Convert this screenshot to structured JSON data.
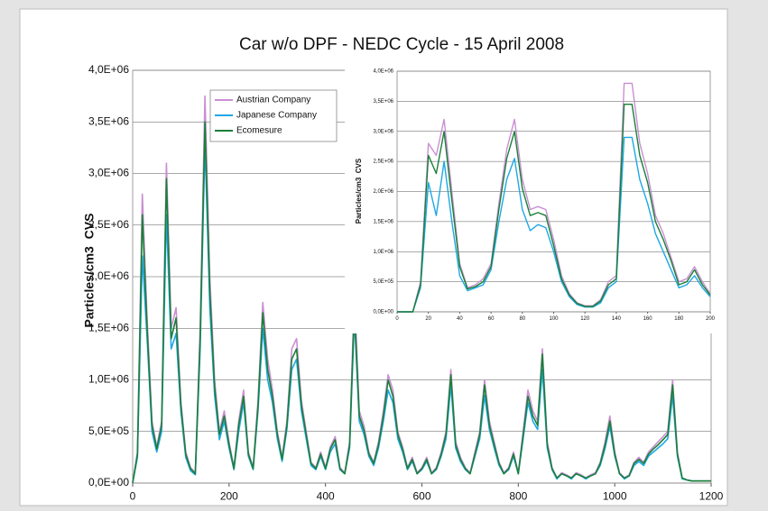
{
  "chart_data": [
    {
      "type": "line",
      "title": "Car w/o DPF - NEDC Cycle - 15 April 2008",
      "ylabel": "Particles/cm3  CVS",
      "legend": "upper-left",
      "grid": true,
      "xlim": [
        0,
        1200
      ],
      "xticks": [
        0,
        200,
        400,
        600,
        800,
        1000,
        1200
      ],
      "ylim": [
        0,
        4000000
      ],
      "yticks": [
        {
          "value": 0,
          "label": "0,0E+00"
        },
        {
          "value": 500000,
          "label": "5,0E+05"
        },
        {
          "value": 1000000,
          "label": "1,0E+06"
        },
        {
          "value": 1500000,
          "label": "1,5E+06"
        },
        {
          "value": 2000000,
          "label": "2,0E+06"
        },
        {
          "value": 2500000,
          "label": "2,5E+06"
        },
        {
          "value": 3000000,
          "label": "3,0E+06"
        },
        {
          "value": 3500000,
          "label": "3,5E+06"
        },
        {
          "value": 4000000,
          "label": "4,0E+06"
        }
      ],
      "x": [
        0,
        10,
        20,
        30,
        40,
        50,
        60,
        70,
        80,
        90,
        100,
        110,
        120,
        130,
        140,
        150,
        160,
        170,
        180,
        190,
        200,
        210,
        220,
        230,
        240,
        250,
        260,
        270,
        280,
        290,
        300,
        310,
        320,
        330,
        340,
        350,
        360,
        370,
        380,
        390,
        400,
        410,
        420,
        430,
        440,
        450,
        460,
        470,
        480,
        490,
        500,
        510,
        520,
        530,
        540,
        550,
        560,
        570,
        580,
        590,
        600,
        610,
        620,
        630,
        640,
        650,
        660,
        670,
        680,
        690,
        700,
        710,
        720,
        730,
        740,
        750,
        760,
        770,
        780,
        790,
        800,
        810,
        820,
        830,
        840,
        850,
        860,
        870,
        880,
        890,
        900,
        910,
        920,
        930,
        940,
        950,
        960,
        970,
        980,
        990,
        1000,
        1010,
        1020,
        1030,
        1040,
        1050,
        1060,
        1070,
        1080,
        1090,
        1100,
        1110,
        1120,
        1130,
        1140,
        1150,
        1160,
        1170,
        1180,
        1190,
        1200
      ],
      "series": [
        {
          "name": "Austrian Company",
          "color": "#c98fd2",
          "values": [
            0,
            300000.0,
            2800000.0,
            1600000.0,
            600000.0,
            350000.0,
            600000.0,
            3100000.0,
            1500000.0,
            1700000.0,
            800000.0,
            300000.0,
            150000.0,
            100000.0,
            1500000.0,
            3750000.0,
            2000000.0,
            1000000.0,
            500000.0,
            700000.0,
            400000.0,
            150000.0,
            600000.0,
            900000.0,
            300000.0,
            150000.0,
            800000.0,
            1750000.0,
            1200000.0,
            900000.0,
            500000.0,
            250000.0,
            600000.0,
            1300000.0,
            1400000.0,
            800000.0,
            500000.0,
            200000.0,
            150000.0,
            300000.0,
            150000.0,
            350000.0,
            450000.0,
            150000.0,
            100000.0,
            400000.0,
            1850000.0,
            700000.0,
            550000.0,
            300000.0,
            200000.0,
            400000.0,
            700000.0,
            1050000.0,
            900000.0,
            500000.0,
            350000.0,
            150000.0,
            250000.0,
            100000.0,
            150000.0,
            250000.0,
            100000.0,
            150000.0,
            300000.0,
            500000.0,
            1100000.0,
            400000.0,
            250000.0,
            150000.0,
            100000.0,
            300000.0,
            500000.0,
            1000000.0,
            600000.0,
            400000.0,
            200000.0,
            100000.0,
            150000.0,
            300000.0,
            100000.0,
            500000.0,
            900000.0,
            700000.0,
            600000.0,
            1300000.0,
            400000.0,
            150000.0,
            50000.0,
            100000.0,
            80000.0,
            50000.0,
            100000.0,
            80000.0,
            50000.0,
            80000.0,
            100000.0,
            200000.0,
            400000.0,
            650000.0,
            300000.0,
            100000.0,
            50000.0,
            80000.0,
            200000.0,
            250000.0,
            200000.0,
            300000.0,
            350000.0,
            400000.0,
            450000.0,
            500000.0,
            1000000.0,
            300000.0,
            50000.0,
            30000.0,
            20000.0,
            20000.0,
            20000.0,
            20000.0,
            20000.0
          ]
        },
        {
          "name": "Japanese Company",
          "color": "#1ea8e4",
          "values": [
            0,
            250000.0,
            2200000.0,
            1400000.0,
            500000.0,
            300000.0,
            500000.0,
            2600000.0,
            1300000.0,
            1450000.0,
            700000.0,
            250000.0,
            120000.0,
            80000.0,
            1300000.0,
            3300000.0,
            1700000.0,
            850000.0,
            420000.0,
            600000.0,
            340000.0,
            130000.0,
            500000.0,
            780000.0,
            260000.0,
            130000.0,
            700000.0,
            1500000.0,
            1000000.0,
            780000.0,
            430000.0,
            210000.0,
            520000.0,
            1100000.0,
            1200000.0,
            700000.0,
            430000.0,
            170000.0,
            130000.0,
            260000.0,
            130000.0,
            300000.0,
            380000.0,
            130000.0,
            90000.0,
            340000.0,
            1600000.0,
            600000.0,
            470000.0,
            260000.0,
            170000.0,
            340000.0,
            600000.0,
            900000.0,
            780000.0,
            430000.0,
            300000.0,
            130000.0,
            210000.0,
            90000.0,
            130000.0,
            210000.0,
            90000.0,
            130000.0,
            260000.0,
            430000.0,
            950000.0,
            340000.0,
            210000.0,
            130000.0,
            90000.0,
            260000.0,
            430000.0,
            850000.0,
            520000.0,
            340000.0,
            170000.0,
            90000.0,
            130000.0,
            260000.0,
            90000.0,
            430000.0,
            780000.0,
            600000.0,
            520000.0,
            1100000.0,
            340000.0,
            130000.0,
            40000.0,
            90000.0,
            70000.0,
            40000.0,
            90000.0,
            70000.0,
            40000.0,
            70000.0,
            90000.0,
            170000.0,
            340000.0,
            550000.0,
            260000.0,
            90000.0,
            40000.0,
            70000.0,
            170000.0,
            210000.0,
            170000.0,
            260000.0,
            300000.0,
            340000.0,
            380000.0,
            430000.0,
            850000.0,
            260000.0,
            40000.0,
            30000.0,
            20000.0,
            20000.0,
            20000.0,
            20000.0,
            20000.0
          ]
        },
        {
          "name": "Ecomesure",
          "color": "#1b7f38",
          "values": [
            0,
            280000.0,
            2600000.0,
            1500000.0,
            560000.0,
            330000.0,
            560000.0,
            2950000.0,
            1400000.0,
            1600000.0,
            750000.0,
            280000.0,
            140000.0,
            90000.0,
            1400000.0,
            3500000.0,
            1850000.0,
            930000.0,
            470000.0,
            650000.0,
            370000.0,
            140000.0,
            560000.0,
            840000.0,
            280000.0,
            140000.0,
            750000.0,
            1650000.0,
            1100000.0,
            840000.0,
            470000.0,
            230000.0,
            560000.0,
            1200000.0,
            1300000.0,
            750000.0,
            470000.0,
            190000.0,
            140000.0,
            280000.0,
            140000.0,
            330000.0,
            420000.0,
            140000.0,
            90000.0,
            370000.0,
            1700000.0,
            650000.0,
            510000.0,
            280000.0,
            190000.0,
            370000.0,
            650000.0,
            1000000.0,
            840000.0,
            470000.0,
            330000.0,
            140000.0,
            230000.0,
            90000.0,
            140000.0,
            230000.0,
            90000.0,
            140000.0,
            280000.0,
            470000.0,
            1050000.0,
            370000.0,
            230000.0,
            140000.0,
            90000.0,
            280000.0,
            470000.0,
            950000.0,
            560000.0,
            370000.0,
            190000.0,
            90000.0,
            140000.0,
            280000.0,
            90000.0,
            470000.0,
            840000.0,
            650000.0,
            560000.0,
            1250000.0,
            370000.0,
            140000.0,
            50000.0,
            90000.0,
            70000.0,
            50000.0,
            90000.0,
            70000.0,
            50000.0,
            70000.0,
            90000.0,
            190000.0,
            370000.0,
            600000.0,
            280000.0,
            90000.0,
            50000.0,
            70000.0,
            190000.0,
            230000.0,
            190000.0,
            280000.0,
            330000.0,
            370000.0,
            420000.0,
            470000.0,
            950000.0,
            280000.0,
            50000.0,
            30000.0,
            20000.0,
            20000.0,
            20000.0,
            20000.0,
            20000.0
          ]
        }
      ]
    },
    {
      "type": "line",
      "ylabel": "Particles/cm3  CVS",
      "grid": true,
      "xlim": [
        0,
        200
      ],
      "xticks": [
        0,
        20,
        40,
        60,
        80,
        100,
        120,
        140,
        160,
        180,
        200
      ],
      "ylim": [
        0,
        4000000
      ],
      "yticks": [
        {
          "value": 0,
          "label": "0,0E+00"
        },
        {
          "value": 500000,
          "label": "5,0E+05"
        },
        {
          "value": 1000000,
          "label": "1,0E+06"
        },
        {
          "value": 1500000,
          "label": "1,5E+06"
        },
        {
          "value": 2000000,
          "label": "2,0E+06"
        },
        {
          "value": 2500000,
          "label": "2,5E+06"
        },
        {
          "value": 3000000,
          "label": "3,0E+06"
        },
        {
          "value": 3500000,
          "label": "3,5E+06"
        },
        {
          "value": 4000000,
          "label": "4,0E+06"
        }
      ],
      "x": [
        0,
        5,
        10,
        15,
        20,
        25,
        30,
        35,
        40,
        45,
        50,
        55,
        60,
        65,
        70,
        75,
        80,
        85,
        90,
        95,
        100,
        105,
        110,
        115,
        120,
        125,
        130,
        135,
        140,
        145,
        150,
        155,
        160,
        165,
        170,
        175,
        180,
        185,
        190,
        195,
        200
      ],
      "series": [
        {
          "name": "Austrian Company",
          "color": "#c98fd2",
          "values": [
            0,
            0,
            0,
            500000.0,
            2800000.0,
            2600000.0,
            3200000.0,
            2000000.0,
            800000.0,
            400000.0,
            450000.0,
            550000.0,
            800000.0,
            1800000.0,
            2700000.0,
            3200000.0,
            2200000.0,
            1700000.0,
            1750000.0,
            1700000.0,
            1200000.0,
            600000.0,
            300000.0,
            150000.0,
            100000.0,
            100000.0,
            200000.0,
            500000.0,
            600000.0,
            3800000.0,
            3800000.0,
            2800000.0,
            2300000.0,
            1600000.0,
            1300000.0,
            900000.0,
            500000.0,
            550000.0,
            750000.0,
            500000.0,
            300000.0
          ]
        },
        {
          "name": "Japanese Company",
          "color": "#1ea8e4",
          "values": [
            0,
            0,
            0,
            400000.0,
            2150000.0,
            1600000.0,
            2500000.0,
            1500000.0,
            600000.0,
            350000.0,
            400000.0,
            450000.0,
            700000.0,
            1500000.0,
            2200000.0,
            2550000.0,
            1700000.0,
            1350000.0,
            1450000.0,
            1400000.0,
            1000000.0,
            500000.0,
            250000.0,
            120000.0,
            80000.0,
            80000.0,
            150000.0,
            400000.0,
            500000.0,
            2900000.0,
            2900000.0,
            2200000.0,
            1800000.0,
            1300000.0,
            1000000.0,
            700000.0,
            400000.0,
            450000.0,
            600000.0,
            400000.0,
            250000.0
          ]
        },
        {
          "name": "Ecomesure",
          "color": "#1b7f38",
          "values": [
            0,
            0,
            0,
            450000.0,
            2600000.0,
            2300000.0,
            3000000.0,
            1850000.0,
            750000.0,
            380000.0,
            420000.0,
            500000.0,
            750000.0,
            1700000.0,
            2550000.0,
            3000000.0,
            2050000.0,
            1600000.0,
            1650000.0,
            1600000.0,
            1100000.0,
            550000.0,
            280000.0,
            140000.0,
            90000.0,
            90000.0,
            180000.0,
            450000.0,
            550000.0,
            3450000.0,
            3450000.0,
            2600000.0,
            2150000.0,
            1500000.0,
            1200000.0,
            850000.0,
            450000.0,
            500000.0,
            700000.0,
            450000.0,
            280000.0
          ]
        }
      ]
    }
  ]
}
